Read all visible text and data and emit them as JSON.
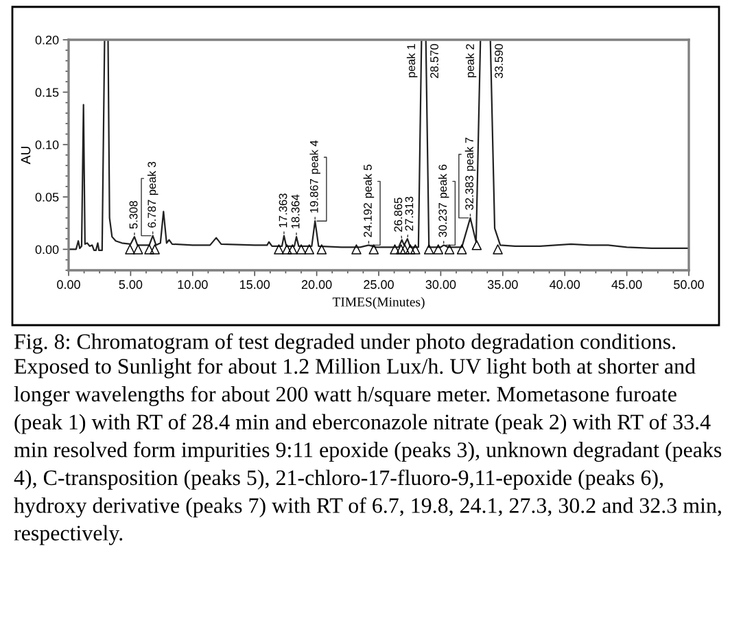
{
  "chart_data": {
    "type": "line",
    "xlabel": "TIMES(Minutes)",
    "ylabel": "AU",
    "xlim": [
      0,
      50
    ],
    "ylim": [
      -0.02,
      0.2
    ],
    "xticks": [
      {
        "value": 0,
        "label": "0.00"
      },
      {
        "value": 5,
        "label": "5.00"
      },
      {
        "value": 10,
        "label": "10.00"
      },
      {
        "value": 15,
        "label": "15.00"
      },
      {
        "value": 20,
        "label": "20.00"
      },
      {
        "value": 25,
        "label": "25.00"
      },
      {
        "value": 30,
        "label": "30.00"
      },
      {
        "value": 35,
        "label": "35.00"
      },
      {
        "value": 40,
        "label": "40.00"
      },
      {
        "value": 45,
        "label": "45.00"
      },
      {
        "value": 50,
        "label": "50.00"
      }
    ],
    "yticks": [
      {
        "value": 0,
        "label": "0.00"
      },
      {
        "value": 0.05,
        "label": "0.05"
      },
      {
        "value": 0.1,
        "label": "0.10"
      },
      {
        "value": 0.15,
        "label": "0.15"
      },
      {
        "value": 0.2,
        "label": "0.20"
      }
    ],
    "series": [
      {
        "color": "#222222",
        "x": [
          0,
          0.6,
          0.78,
          0.9,
          1.05,
          1.2,
          1.32,
          1.5,
          1.7,
          1.9,
          2.05,
          2.2,
          2.35,
          2.45,
          2.7,
          2.9,
          3.18,
          3.3,
          3.5,
          3.8,
          4.3,
          5.0,
          5.308,
          5.55,
          6.5,
          6.787,
          7.05,
          7.4,
          7.65,
          7.9,
          8.1,
          8.35,
          10.0,
          11.4,
          11.9,
          12.3,
          15.0,
          16.0,
          16.15,
          16.4,
          17.2,
          17.363,
          17.55,
          18.2,
          18.364,
          18.55,
          19.6,
          19.867,
          20.15,
          22.0,
          23.5,
          24.192,
          24.8,
          26.6,
          26.865,
          27.05,
          27.313,
          27.55,
          28.2,
          28.45,
          28.8,
          29.05,
          30.0,
          30.237,
          30.6,
          31.7,
          32.383,
          32.85,
          33.2,
          34.0,
          34.35,
          34.8,
          36.0,
          38.0,
          40.5,
          42.0,
          43.5,
          45.0,
          47.0,
          50.0
        ],
        "values": [
          0,
          0,
          0.008,
          0.001,
          0.003,
          0.138,
          0.005,
          0.006,
          0.003,
          0.004,
          -0.001,
          -0.001,
          0.006,
          -0.001,
          -0.001,
          0.2,
          0.2,
          0.03,
          0.012,
          0.008,
          0.006,
          0.005,
          0.012,
          0.004,
          0.004,
          0.013,
          0.004,
          0.006,
          0.036,
          0.006,
          0.009,
          0.005,
          0.004,
          0.004,
          0.011,
          0.005,
          0.004,
          0.004,
          0.007,
          0.003,
          0.003,
          0.013,
          0.003,
          0.003,
          0.012,
          0.003,
          0.003,
          0.027,
          0.003,
          0.002,
          0.002,
          0.004,
          0.002,
          0.002,
          0.009,
          0.004,
          0.01,
          0.002,
          0.002,
          0.2,
          0.2,
          0.002,
          0.002,
          0.004,
          0.002,
          0.002,
          0.03,
          0.007,
          0.2,
          0.2,
          0.02,
          0.004,
          0.003,
          0.003,
          0.005,
          0.004,
          0.004,
          0.002,
          0.001,
          0.001
        ]
      },
      {
        "type": "scatter",
        "marker": "triangle",
        "color": "#000000",
        "x": [
          4.95,
          5.6,
          6.5,
          6.95,
          16.95,
          17.6,
          18.05,
          18.75,
          19.4,
          20.4,
          23.2,
          24.6,
          26.3,
          26.8,
          27.1,
          27.55,
          27.95,
          29.05,
          29.8,
          30.7,
          31.7,
          32.9,
          34.6
        ],
        "values": [
          0,
          0,
          0,
          0,
          0,
          0,
          0,
          0,
          0,
          0,
          0,
          0,
          0,
          0,
          0,
          0,
          0,
          0,
          0,
          0,
          0,
          0.004,
          0
        ]
      }
    ],
    "annotations": [
      {
        "text": "5.308",
        "x": 5.308,
        "y": 0.012
      },
      {
        "text": "6.787",
        "x": 6.787,
        "y": 0.013
      },
      {
        "text": "peak 3",
        "x": 6.787,
        "y": 0.013
      },
      {
        "text": "17.363",
        "x": 17.363,
        "y": 0.013
      },
      {
        "text": "18.364",
        "x": 18.364,
        "y": 0.012
      },
      {
        "text": "19.867",
        "x": 19.867,
        "y": 0.027
      },
      {
        "text": "peak 4",
        "x": 19.867,
        "y": 0.027
      },
      {
        "text": "24.192",
        "x": 24.192,
        "y": 0.004
      },
      {
        "text": "peak 5",
        "x": 24.192,
        "y": 0.004
      },
      {
        "text": "26.865",
        "x": 26.865,
        "y": 0.009
      },
      {
        "text": "27.313",
        "x": 27.313,
        "y": 0.01
      },
      {
        "text": "28.570",
        "x": 28.57,
        "y": 0.2
      },
      {
        "text": "peak 1",
        "x": 28.57,
        "y": 0.2
      },
      {
        "text": "30.237",
        "x": 30.237,
        "y": 0.004
      },
      {
        "text": "peak 6",
        "x": 30.237,
        "y": 0.004
      },
      {
        "text": "32.383",
        "x": 32.383,
        "y": 0.03
      },
      {
        "text": "peak 7",
        "x": 32.383,
        "y": 0.03
      },
      {
        "text": "33.590",
        "x": 33.59,
        "y": 0.2
      },
      {
        "text": "peak 2",
        "x": 33.59,
        "y": 0.2
      },
      "Fig. 8: Chromatogram of test degraded under photo degradation conditions.",
      "Exposed to Sunlight for about 1.2 Million Lux/h. UV light both at shorter and longer wavelengths for about 200 watt h/square meter. Mometasone furoate (peak 1) with RT of 28.4 min and eberconazole nitrate (peak 2) with RT of 33.4 min resolved form impurities 9:11 epoxide (peaks 3), unknown degradant (peaks 4), C-transposition (peaks 5), 21-chloro-17-fluoro-9,11-epoxide (peaks 6), hydroxy derivative (peaks 7) with RT of 6.7, 19.8, 24.1, 27.3, 30.2 and 32.3 min, respectively."
    ]
  }
}
